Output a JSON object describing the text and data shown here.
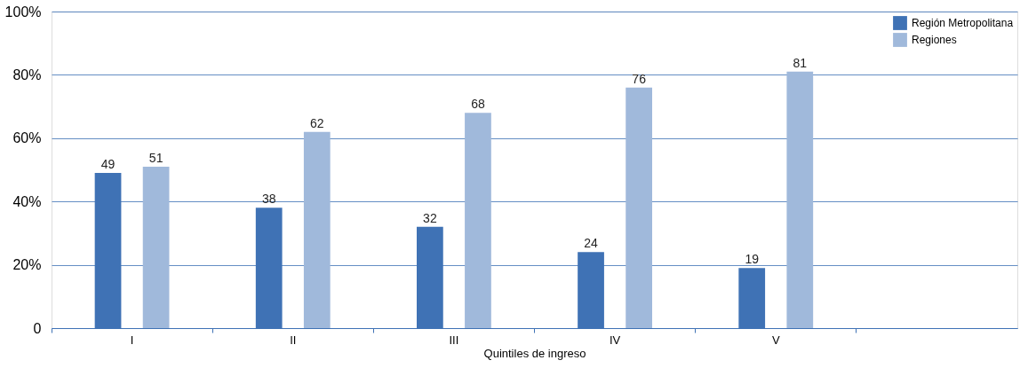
{
  "chart_data": {
    "type": "bar",
    "xlabel": "Quintiles de ingreso",
    "categories": [
      "I",
      "II",
      "III",
      "IV",
      "V",
      null
    ],
    "series": [
      {
        "name": "Región Metropolitana",
        "color": "#3f72b5",
        "values": [
          49,
          38,
          32,
          24,
          19,
          null
        ]
      },
      {
        "name": "Regiones",
        "color": "#a0b9db",
        "values": [
          51,
          62,
          68,
          76,
          81,
          null
        ]
      }
    ],
    "ylim": [
      0,
      100
    ],
    "yticks": [
      0,
      {
        "value": 20,
        "label": "20%"
      },
      {
        "value": 40,
        "label": "40%"
      },
      {
        "value": 60,
        "label": "60%"
      },
      {
        "value": 80,
        "label": "80%"
      },
      {
        "value": 100,
        "label": "100%"
      }
    ],
    "grid": "y",
    "legend": "top right",
    "data_labels": true
  }
}
